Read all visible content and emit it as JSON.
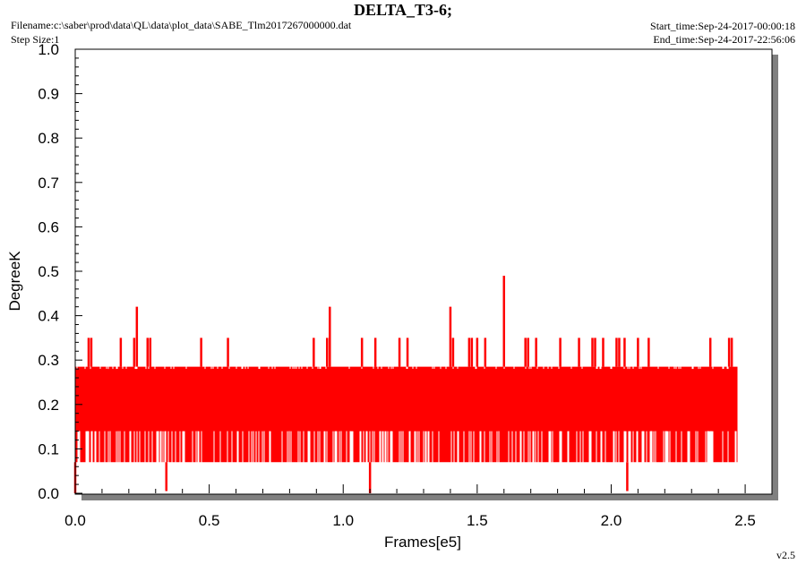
{
  "header": {
    "title": "DELTA_T3-6;",
    "filename": "Filename:c:\\saber\\prod\\data\\QL\\data\\plot_data\\SABE_Tlm2017267000000.dat",
    "step_size": "Step Size:1",
    "start_time": "Start_time:Sep-24-2017-00:00:18",
    "end_time": "End_time:Sep-24-2017-22:56:06",
    "version": "v2.5"
  },
  "colors": {
    "series": "#ff0000",
    "axes": "#000000",
    "shadow": "#808080",
    "background": "#ffffff"
  },
  "chart_data": {
    "type": "line",
    "title": "DELTA_T3-6;",
    "xlabel": "Frames[e5]",
    "ylabel": "DegreeK",
    "xlim": [
      0,
      2.6
    ],
    "ylim": [
      0,
      1.0
    ],
    "x_ticks": [
      "0.0",
      "0.5",
      "1.0",
      "1.5",
      "2.0",
      "2.5"
    ],
    "y_ticks": [
      "0.0",
      "0.1",
      "0.2",
      "0.3",
      "0.4",
      "0.5",
      "0.6",
      "0.7",
      "0.8",
      "0.9",
      "1.0"
    ],
    "grid": false,
    "legend": "none",
    "series": [
      {
        "color": "#ff0000",
        "x_range": [
          0,
          2.47
        ],
        "band": {
          "low": 0.07,
          "high": 0.285
        },
        "dense_band": {
          "low": 0.14,
          "high": 0.28
        },
        "mid_level": 0.21,
        "spikes": [
          {
            "x": 0.05,
            "y": 0.35
          },
          {
            "x": 0.06,
            "y": 0.35
          },
          {
            "x": 0.17,
            "y": 0.35
          },
          {
            "x": 0.22,
            "y": 0.35
          },
          {
            "x": 0.23,
            "y": 0.42
          },
          {
            "x": 0.27,
            "y": 0.35
          },
          {
            "x": 0.28,
            "y": 0.35
          },
          {
            "x": 0.47,
            "y": 0.35
          },
          {
            "x": 0.57,
            "y": 0.35
          },
          {
            "x": 0.89,
            "y": 0.35
          },
          {
            "x": 0.94,
            "y": 0.35
          },
          {
            "x": 0.95,
            "y": 0.42
          },
          {
            "x": 1.07,
            "y": 0.35
          },
          {
            "x": 1.12,
            "y": 0.35
          },
          {
            "x": 1.21,
            "y": 0.35
          },
          {
            "x": 1.24,
            "y": 0.35
          },
          {
            "x": 1.4,
            "y": 0.42
          },
          {
            "x": 1.41,
            "y": 0.35
          },
          {
            "x": 1.47,
            "y": 0.35
          },
          {
            "x": 1.48,
            "y": 0.35
          },
          {
            "x": 1.5,
            "y": 0.35
          },
          {
            "x": 1.53,
            "y": 0.35
          },
          {
            "x": 1.6,
            "y": 0.49
          },
          {
            "x": 1.68,
            "y": 0.35
          },
          {
            "x": 1.69,
            "y": 0.35
          },
          {
            "x": 1.72,
            "y": 0.35
          },
          {
            "x": 1.81,
            "y": 0.35
          },
          {
            "x": 1.88,
            "y": 0.35
          },
          {
            "x": 1.93,
            "y": 0.35
          },
          {
            "x": 1.94,
            "y": 0.35
          },
          {
            "x": 1.97,
            "y": 0.35
          },
          {
            "x": 2.02,
            "y": 0.35
          },
          {
            "x": 2.03,
            "y": 0.35
          },
          {
            "x": 2.05,
            "y": 0.35
          },
          {
            "x": 2.1,
            "y": 0.35
          },
          {
            "x": 2.14,
            "y": 0.35
          },
          {
            "x": 2.37,
            "y": 0.35
          },
          {
            "x": 2.44,
            "y": 0.35
          },
          {
            "x": 2.45,
            "y": 0.35
          }
        ],
        "dips": [
          {
            "x": 0.0,
            "y": 0.0
          },
          {
            "x": 0.34,
            "y": 0.005
          },
          {
            "x": 1.1,
            "y": 0.0
          },
          {
            "x": 2.06,
            "y": 0.005
          }
        ]
      }
    ]
  }
}
